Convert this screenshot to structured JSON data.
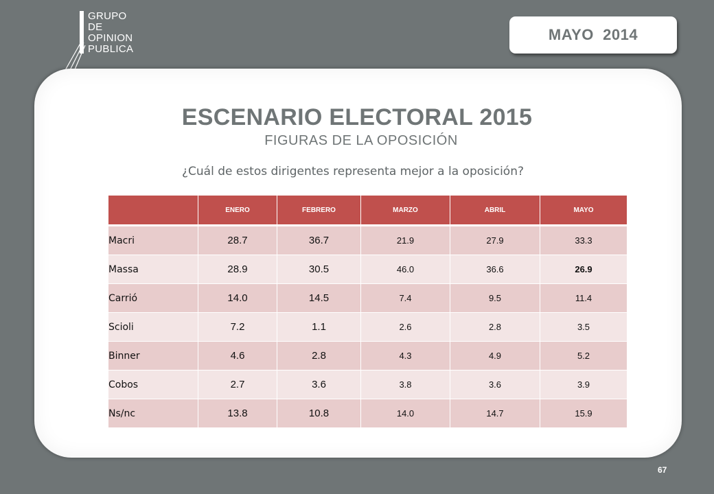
{
  "logo": {
    "lines": [
      "GRUPO",
      "DE",
      "OPINION",
      "PUBLICA"
    ]
  },
  "date_label": "MAYO  2014",
  "title": "ESCENARIO ELECTORAL 2015",
  "subtitle": "FIGURAS DE LA OPOSICIÓN",
  "question": "¿Cuál de estos dirigentes representa mejor a la oposición?",
  "table": {
    "columns": [
      "",
      "ENERO",
      "FEBRERO",
      "MARZO",
      "ABRIL",
      "MAYO"
    ],
    "rows": [
      {
        "name": "Macri",
        "values": [
          "28.7",
          "36.7",
          "21.9",
          "27.9",
          "33.3"
        ]
      },
      {
        "name": "Massa",
        "values": [
          "28.9",
          "30.5",
          "46.0",
          "36.6",
          "26.9"
        ]
      },
      {
        "name": "Carrió",
        "values": [
          "14.0",
          "14.5",
          "7.4",
          "9.5",
          "11.4"
        ]
      },
      {
        "name": "Scioli",
        "values": [
          "7.2",
          "1.1",
          "2.6",
          "2.8",
          "3.5"
        ]
      },
      {
        "name": "Binner",
        "values": [
          "4.6",
          "2.8",
          "4.3",
          "4.9",
          "5.2"
        ]
      },
      {
        "name": "Cobos",
        "values": [
          "2.7",
          "3.6",
          "3.8",
          "3.6",
          "3.9"
        ]
      },
      {
        "name": "Ns/nc",
        "values": [
          "13.8",
          "10.8",
          "14.0",
          "14.7",
          "15.9"
        ]
      }
    ]
  },
  "page_number": "67"
}
